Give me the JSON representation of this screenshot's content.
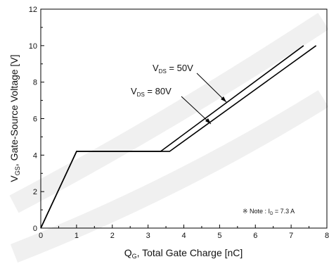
{
  "chart_data": {
    "type": "line",
    "title": "",
    "xlabel": "Q",
    "xlabel_sub": "G",
    "xlabel_rest": ", Total Gate Charge [nC]",
    "ylabel": "V",
    "ylabel_sub": "GS",
    "ylabel_rest": ", Gate-Source Voltage [V]",
    "xlim": [
      0,
      8
    ],
    "ylim": [
      0,
      12
    ],
    "x_ticks": [
      "0",
      "1",
      "2",
      "3",
      "4",
      "5",
      "6",
      "7",
      "8"
    ],
    "y_ticks": [
      "0",
      "2",
      "4",
      "6",
      "8",
      "10",
      "12"
    ],
    "grid": false,
    "series": [
      {
        "name": "V_DS = 50V",
        "label_main": "V",
        "label_sub": "DS",
        "label_rest": " = 50V",
        "points": [
          [
            0,
            0
          ],
          [
            1.0,
            4.2
          ],
          [
            3.35,
            4.2
          ],
          [
            7.35,
            10.0
          ]
        ]
      },
      {
        "name": "V_DS = 80V",
        "label_main": "V",
        "label_sub": "DS",
        "label_rest": " = 80V",
        "points": [
          [
            0,
            0
          ],
          [
            1.0,
            4.2
          ],
          [
            3.6,
            4.2
          ],
          [
            7.7,
            10.0
          ]
        ]
      }
    ],
    "note": "※ Note : I",
    "note_sub": "D",
    "note_rest": " = 7.3 A",
    "line_color": "#000000"
  }
}
